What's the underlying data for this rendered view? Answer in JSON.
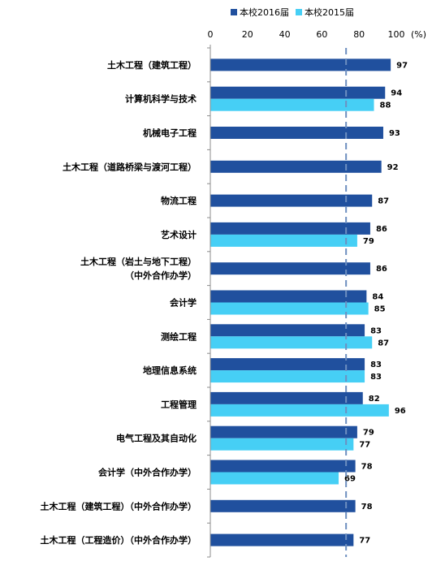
{
  "chart_data": {
    "type": "bar",
    "orientation": "horizontal",
    "unit_label": "(%)",
    "xlim": [
      0,
      100
    ],
    "x_ticks": [
      0,
      20,
      40,
      60,
      80,
      100
    ],
    "reference_line_value": 73,
    "legend_position": "top",
    "colors": {
      "2016": "#20509e",
      "2015": "#46cff5",
      "reference": "#6d8fc0",
      "axis": "#8c8c8c"
    },
    "categories": [
      [
        "土木工程（建筑工程）"
      ],
      [
        "计算机科学与技术"
      ],
      [
        "机械电子工程"
      ],
      [
        "土木工程（道路桥梁与渡河工程）"
      ],
      [
        "物流工程"
      ],
      [
        "艺术设计"
      ],
      [
        "土木工程（岩土与地下工程）",
        "（中外合作办学）"
      ],
      [
        "会计学"
      ],
      [
        "测绘工程"
      ],
      [
        "地理信息系统"
      ],
      [
        "工程管理"
      ],
      [
        "电气工程及其自动化"
      ],
      [
        "会计学（中外合作办学）"
      ],
      [
        "土木工程（建筑工程）（中外合作办学）"
      ],
      [
        "土木工程（工程造价）（中外合作办学）"
      ]
    ],
    "series": [
      {
        "name": "本校2016届",
        "values": [
          97,
          94,
          93,
          92,
          87,
          86,
          86,
          84,
          83,
          83,
          82,
          79,
          78,
          78,
          77
        ]
      },
      {
        "name": "本校2015届",
        "values": [
          null,
          88,
          null,
          null,
          null,
          79,
          null,
          85,
          87,
          83,
          96,
          77,
          69,
          null,
          null
        ]
      }
    ]
  }
}
